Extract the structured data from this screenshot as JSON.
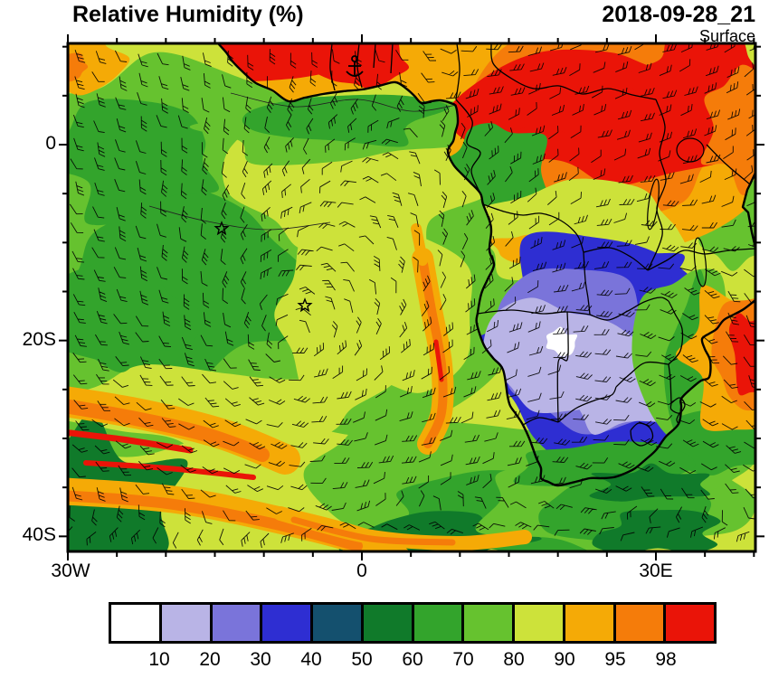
{
  "header": {
    "title": "Relative Humidity (%)",
    "datetime": "2018-09-28_21",
    "level": "Surface"
  },
  "axes": {
    "y_labels": [
      "0",
      "20S",
      "40S"
    ],
    "x_labels": [
      "30W",
      "0",
      "30E"
    ]
  },
  "colorbar": {
    "labels": [
      "10",
      "20",
      "30",
      "40",
      "50",
      "60",
      "70",
      "80",
      "90",
      "95",
      "98"
    ],
    "colors": [
      "#ffffff",
      "#b9b4e6",
      "#7a74da",
      "#2e2ed2",
      "#14506e",
      "#107a2a",
      "#33a42c",
      "#66c22f",
      "#cde23a",
      "#f5aa06",
      "#f57c0a",
      "#ea1408"
    ]
  },
  "map": {
    "region": "Africa / South Atlantic",
    "markers": {
      "star_count": 2,
      "anchor_count": 1
    }
  }
}
